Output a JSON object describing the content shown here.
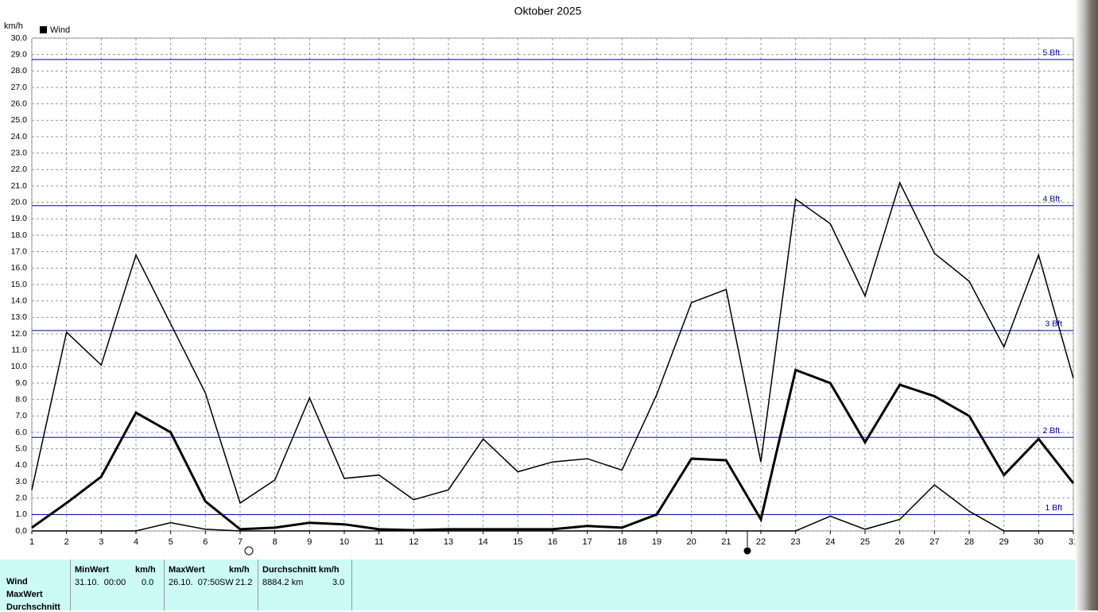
{
  "chart_data": {
    "type": "line",
    "title": "Oktober 2025",
    "y_label": "km/h",
    "x": [
      1,
      2,
      3,
      4,
      5,
      6,
      7,
      8,
      9,
      10,
      11,
      12,
      13,
      14,
      15,
      16,
      17,
      18,
      19,
      20,
      21,
      22,
      23,
      24,
      25,
      26,
      27,
      28,
      29,
      30,
      31
    ],
    "xlim": [
      1,
      31
    ],
    "xticks": [
      1,
      2,
      3,
      4,
      5,
      6,
      7,
      8,
      9,
      10,
      11,
      12,
      13,
      14,
      15,
      16,
      17,
      18,
      19,
      20,
      21,
      22,
      23,
      24,
      25,
      26,
      27,
      28,
      29,
      30,
      31
    ],
    "ylim": [
      0,
      30
    ],
    "yticks": [
      {
        "value": 0,
        "label": "0.0"
      },
      {
        "value": 1,
        "label": "1.0"
      },
      {
        "value": 2,
        "label": "2.0"
      },
      {
        "value": 3,
        "label": "3.0"
      },
      {
        "value": 4,
        "label": "4.0"
      },
      {
        "value": 5,
        "label": "5.0"
      },
      {
        "value": 6,
        "label": "6.0"
      },
      {
        "value": 7,
        "label": "7.0"
      },
      {
        "value": 8,
        "label": "8.0"
      },
      {
        "value": 9,
        "label": "9.0"
      },
      {
        "value": 10,
        "label": "10.0"
      },
      {
        "value": 11,
        "label": "11.0"
      },
      {
        "value": 12,
        "label": "12.0"
      },
      {
        "value": 13,
        "label": "13.0"
      },
      {
        "value": 14,
        "label": "14.0"
      },
      {
        "value": 15,
        "label": "15.0"
      },
      {
        "value": 16,
        "label": "16.0"
      },
      {
        "value": 17,
        "label": "17.0"
      },
      {
        "value": 18,
        "label": "18.0"
      },
      {
        "value": 19,
        "label": "19.0"
      },
      {
        "value": 20,
        "label": "20.0"
      },
      {
        "value": 21,
        "label": "21.0"
      },
      {
        "value": 22,
        "label": "22.0"
      },
      {
        "value": 23,
        "label": "23.0"
      },
      {
        "value": 24,
        "label": "24.0"
      },
      {
        "value": 25,
        "label": "25.0"
      },
      {
        "value": 26,
        "label": "26.0"
      },
      {
        "value": 27,
        "label": "27.0"
      },
      {
        "value": 28,
        "label": "28.0"
      },
      {
        "value": 29,
        "label": "29.0"
      },
      {
        "value": 30,
        "label": "30.0"
      }
    ],
    "grid": true,
    "series": [
      {
        "name": "Wind",
        "color": "#000000",
        "width": 3,
        "values": [
          0.2,
          1.7,
          3.3,
          7.2,
          6.0,
          1.8,
          0.1,
          0.2,
          0.5,
          0.4,
          0.1,
          0.05,
          0.1,
          0.1,
          0.1,
          0.1,
          0.3,
          0.2,
          1.0,
          4.4,
          4.3,
          0.7,
          9.8,
          9.0,
          5.4,
          8.9,
          8.2,
          7.0,
          3.4,
          5.6,
          2.9
        ]
      },
      {
        "color": "#000000",
        "width": 1.5,
        "values": [
          2.5,
          12.1,
          10.1,
          16.8,
          12.6,
          8.4,
          1.7,
          3.1,
          8.1,
          3.2,
          3.4,
          1.9,
          2.5,
          5.6,
          3.6,
          4.2,
          4.4,
          3.7,
          8.3,
          13.9,
          14.7,
          4.2,
          20.2,
          18.7,
          14.3,
          21.2,
          16.9,
          15.2,
          11.2,
          16.8,
          9.3
        ]
      },
      {
        "color": "#000000",
        "width": 1.5,
        "values": [
          0,
          0,
          0,
          0,
          0.5,
          0.1,
          0,
          0,
          0,
          0,
          0,
          0,
          0,
          0,
          0,
          0,
          0,
          0,
          0,
          0,
          0,
          0,
          0,
          0.9,
          0.1,
          0.7,
          2.8,
          1.2,
          0,
          0,
          0
        ]
      }
    ],
    "reference_lines": [
      {
        "value": 1.0,
        "label": "1 Bft"
      },
      {
        "value": 5.7,
        "label": "2 Bft."
      },
      {
        "value": 12.2,
        "label": "3 Bft"
      },
      {
        "value": 19.8,
        "label": "4 Bft."
      },
      {
        "value": 28.7,
        "label": "5 Bft."
      }
    ],
    "reference_color": "#0000a0"
  },
  "table": {
    "row_labels": [
      "Wind",
      "MaxWert",
      "Durchschnitt"
    ],
    "columns": [
      {
        "header": "MinWert",
        "unit": "km/h",
        "cells": [
          "31.10.  00:00",
          "0.0"
        ]
      },
      {
        "header": "MaxWert",
        "unit": "km/h",
        "cells": [
          "26.10.  07:50",
          "SW",
          "21.2"
        ]
      },
      {
        "header": "Durchschnitt km/h",
        "cells": [
          "8884.2 km",
          "3.0"
        ]
      }
    ]
  }
}
